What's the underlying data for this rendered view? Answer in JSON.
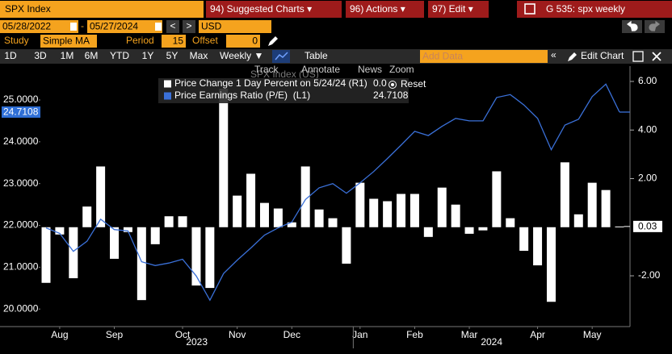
{
  "ui": {
    "security": "SPX Index",
    "menu": [
      "94) Suggested Charts ▾",
      "96) Actions ▾",
      "97) Edit ▾"
    ],
    "chart_id": "G 535: spx weekly",
    "start_date": "05/28/2022",
    "end_date": "05/27/2024",
    "date_sep": "-",
    "prev": "<",
    "next": ">",
    "currency": "USD",
    "study_label": "Study",
    "study": "Simple MA",
    "period_label": "Period",
    "period": "15",
    "offset_label": "Offset",
    "offset": "0",
    "ranges": [
      "1D",
      "3D",
      "1M",
      "6M",
      "YTD",
      "1Y",
      "5Y",
      "Max"
    ],
    "frequency": "Weekly ▼",
    "table": "Table",
    "add_data": "Add Data",
    "collapse": "«",
    "edit_chart": "Edit Chart",
    "tools": [
      "Track",
      "Annotate",
      "News",
      "Zoom",
      "Reset"
    ]
  },
  "chart_data": {
    "type": "combo",
    "title": "SPX Index (US)",
    "categories": [
      null,
      "Aug",
      null,
      null,
      null,
      "Sep",
      null,
      null,
      null,
      null,
      "Oct",
      null,
      null,
      null,
      "Nov",
      null,
      null,
      null,
      "Dec",
      null,
      null,
      null,
      null,
      "Jan",
      null,
      null,
      null,
      "Feb",
      null,
      null,
      null,
      "Mar",
      null,
      null,
      null,
      null,
      "Apr",
      null,
      null,
      null,
      "May",
      null,
      null
    ],
    "years": [
      "2023",
      "2024"
    ],
    "series": [
      {
        "name": "Price Change 1 Day Percent on 5/24/24 (R1)",
        "type": "bar",
        "axis": "y2",
        "color": "#ffffff",
        "legend_value": "0.0",
        "last_label": "0.03",
        "values": [
          -2.29,
          -0.3,
          -2.1,
          0.85,
          2.5,
          -1.3,
          -0.2,
          -3.0,
          -0.7,
          0.45,
          0.45,
          -2.4,
          -2.5,
          5.7,
          1.3,
          2.2,
          1.0,
          0.77,
          0.2,
          2.5,
          0.73,
          0.37,
          -1.5,
          1.83,
          1.17,
          1.07,
          1.37,
          1.37,
          -0.4,
          1.63,
          0.93,
          -0.27,
          -0.13,
          2.3,
          0.37,
          -0.97,
          -1.57,
          -3.07,
          2.67,
          0.53,
          1.83,
          1.53,
          0.03
        ]
      },
      {
        "name": "Price Earnings Ratio (P/E)  (L1)",
        "type": "line",
        "axis": "y",
        "color": "#3a70d8",
        "legend_value": "24.7108",
        "values": [
          21.94,
          21.81,
          21.38,
          21.62,
          22.15,
          21.9,
          21.87,
          21.13,
          21.04,
          21.1,
          21.19,
          20.79,
          20.21,
          20.85,
          21.17,
          21.46,
          21.77,
          21.94,
          22.08,
          22.62,
          22.9,
          23.0,
          22.77,
          23.02,
          23.29,
          23.6,
          23.92,
          24.25,
          24.15,
          24.37,
          24.56,
          24.5,
          24.5,
          25.06,
          25.13,
          24.88,
          24.56,
          23.81,
          24.4,
          24.54,
          25.08,
          25.38,
          24.7108
        ]
      }
    ],
    "ylim": [
      19.58,
      25.81
    ],
    "yticks": [
      {
        "value": 20,
        "label": "20.0000"
      },
      {
        "value": 21,
        "label": "21.0000"
      },
      {
        "value": 22,
        "label": "22.0000"
      },
      {
        "value": 23,
        "label": "23.0000"
      },
      {
        "value": 24,
        "label": "24.0000"
      },
      {
        "value": 25,
        "label": "25.0000"
      }
    ],
    "y2lim": [
      -4.09,
      6.63
    ],
    "y2ticks": [
      {
        "value": -2,
        "label": "-2.00"
      },
      {
        "value": 2,
        "label": "2.00"
      },
      {
        "value": 4,
        "label": "4.00"
      },
      {
        "value": 6,
        "label": "6.00"
      }
    ],
    "grid": false
  }
}
